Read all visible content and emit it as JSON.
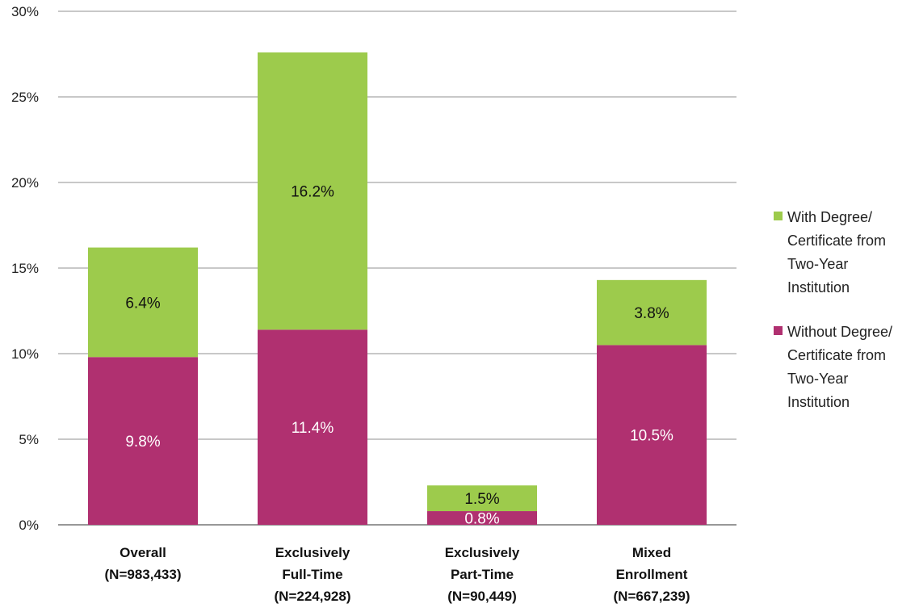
{
  "chart_data": {
    "type": "bar",
    "stacked": true,
    "categories": [
      [
        "Overall",
        "(N=983,433)"
      ],
      [
        "Exclusively",
        "Full-Time",
        "(N=224,928)"
      ],
      [
        "Exclusively",
        "Part-Time",
        "(N=90,449)"
      ],
      [
        "Mixed",
        "Enrollment",
        "(N=667,239)"
      ]
    ],
    "series": [
      {
        "name": [
          "Without Degree/",
          "Certificate from",
          "Two-Year",
          "Institution"
        ],
        "color": "#b03070",
        "label_color": "#ffffff",
        "values": [
          9.8,
          11.4,
          0.8,
          10.5
        ],
        "labels": [
          "9.8%",
          "11.4%",
          "0.8%",
          "10.5%"
        ]
      },
      {
        "name": [
          "With Degree/",
          "Certificate from",
          "Two-Year",
          "Institution"
        ],
        "color": "#9dcb4c",
        "label_color": "#111111",
        "values": [
          6.4,
          16.2,
          1.5,
          3.8
        ],
        "labels": [
          "6.4%",
          "16.2%",
          "1.5%",
          "3.8%"
        ]
      }
    ],
    "ylim": [
      0,
      30
    ],
    "yticks": [
      0,
      5,
      10,
      15,
      20,
      25,
      30
    ],
    "ytick_labels": [
      "0%",
      "5%",
      "10%",
      "15%",
      "20%",
      "25%",
      "30%"
    ],
    "grid": true,
    "legend_position": "right"
  }
}
